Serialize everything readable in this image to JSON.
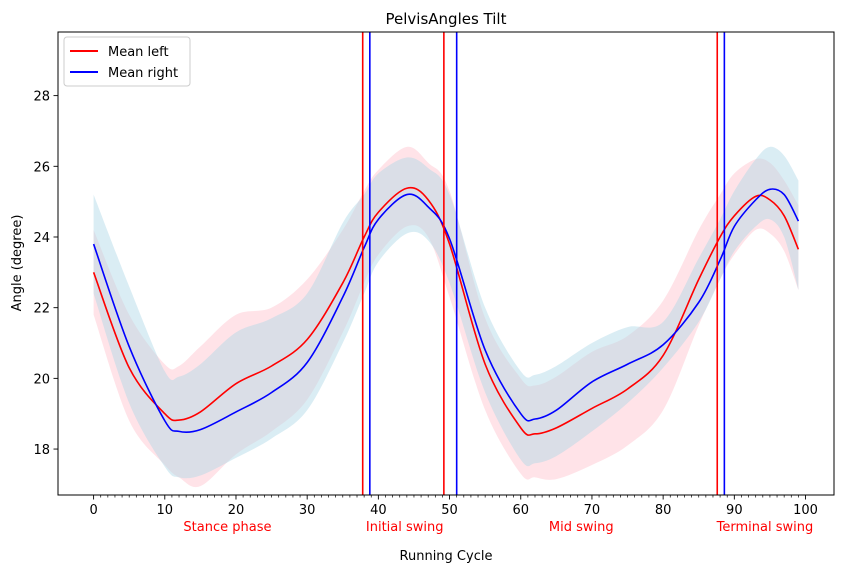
{
  "chart_data": {
    "type": "line",
    "title": "PelvisAngles Tilt",
    "xlabel": "Running Cycle",
    "ylabel": "Angle (degree)",
    "xlim": [
      -5,
      104
    ],
    "ylim": [
      16.7,
      29.8
    ],
    "x_ticks": [
      0,
      10,
      20,
      30,
      40,
      50,
      60,
      70,
      80,
      90,
      100
    ],
    "x_tick_labels": [
      "0",
      "10",
      "20",
      "30",
      "40",
      "50",
      "60",
      "70",
      "80",
      "90",
      "100"
    ],
    "y_ticks": [
      18,
      20,
      22,
      24,
      26,
      28
    ],
    "y_tick_labels": [
      "18",
      "20",
      "22",
      "24",
      "26",
      "28"
    ],
    "grid": false,
    "legend_position": "top-left",
    "x": [
      0,
      5,
      10,
      12,
      15,
      20,
      25,
      30,
      35,
      38,
      40,
      44,
      47,
      50,
      55,
      60,
      62,
      65,
      70,
      75,
      80,
      85,
      88,
      90,
      93,
      95,
      97,
      99
    ],
    "series": [
      {
        "name": "Mean left",
        "color": "#ff0000",
        "band_color": "#ffc0cb",
        "values": [
          23.0,
          20.3,
          19.0,
          18.82,
          19.05,
          19.85,
          20.35,
          21.1,
          22.7,
          24.0,
          24.7,
          25.38,
          25.05,
          23.8,
          20.4,
          18.6,
          18.43,
          18.6,
          19.15,
          19.7,
          20.65,
          22.8,
          24.0,
          24.6,
          25.15,
          25.05,
          24.6,
          23.65
        ],
        "lower": [
          21.8,
          18.8,
          17.55,
          17.2,
          16.95,
          17.85,
          18.5,
          19.4,
          21.3,
          22.7,
          23.5,
          24.3,
          24.0,
          22.3,
          19.1,
          17.3,
          17.2,
          17.15,
          17.55,
          18.1,
          19.1,
          21.5,
          22.8,
          23.5,
          24.2,
          24.1,
          23.6,
          22.5
        ],
        "upper": [
          24.2,
          21.8,
          20.4,
          20.35,
          20.9,
          21.8,
          22.0,
          22.8,
          24.2,
          25.3,
          25.9,
          26.55,
          26.1,
          25.3,
          21.7,
          20.0,
          19.8,
          20.05,
          20.75,
          21.2,
          22.2,
          24.2,
          25.2,
          25.8,
          26.2,
          26.1,
          25.6,
          24.9
        ]
      },
      {
        "name": "Mean right",
        "color": "#0000ff",
        "band_color": "#add8e6",
        "values": [
          23.8,
          20.9,
          18.8,
          18.5,
          18.55,
          19.05,
          19.6,
          20.45,
          22.3,
          23.7,
          24.5,
          25.2,
          24.85,
          23.95,
          20.8,
          19.0,
          18.85,
          19.1,
          19.9,
          20.4,
          20.95,
          22.15,
          23.35,
          24.3,
          25.05,
          25.35,
          25.2,
          24.45
        ],
        "lower": [
          22.4,
          19.3,
          17.5,
          17.2,
          17.25,
          17.75,
          18.3,
          19.1,
          21.0,
          22.4,
          23.3,
          24.1,
          23.9,
          22.7,
          19.6,
          17.7,
          17.6,
          17.8,
          18.5,
          19.3,
          20.3,
          21.6,
          22.8,
          23.6,
          24.3,
          24.5,
          24.0,
          22.5
        ],
        "upper": [
          25.2,
          22.6,
          20.2,
          20.05,
          20.4,
          21.3,
          21.7,
          22.4,
          24.4,
          25.2,
          25.8,
          26.25,
          25.95,
          25.2,
          22.0,
          20.2,
          20.1,
          20.35,
          21.0,
          21.45,
          21.6,
          23.4,
          24.5,
          25.3,
          26.2,
          26.55,
          26.3,
          25.6
        ]
      }
    ],
    "vertical_lines": [
      {
        "x": 37.8,
        "color": "#ff0000"
      },
      {
        "x": 38.8,
        "color": "#0000ff"
      },
      {
        "x": 49.2,
        "color": "#ff0000"
      },
      {
        "x": 51.0,
        "color": "#0000ff"
      },
      {
        "x": 87.6,
        "color": "#ff0000"
      },
      {
        "x": 88.6,
        "color": "#0000ff"
      }
    ],
    "phase_labels": [
      {
        "text": "Stance phase",
        "x": 18.8
      },
      {
        "text": "Initial swing",
        "x": 43.7
      },
      {
        "text": "Mid swing",
        "x": 68.5
      },
      {
        "text": "Terminal swing",
        "x": 94.3
      }
    ],
    "phase_label_color": "#ff0000"
  }
}
